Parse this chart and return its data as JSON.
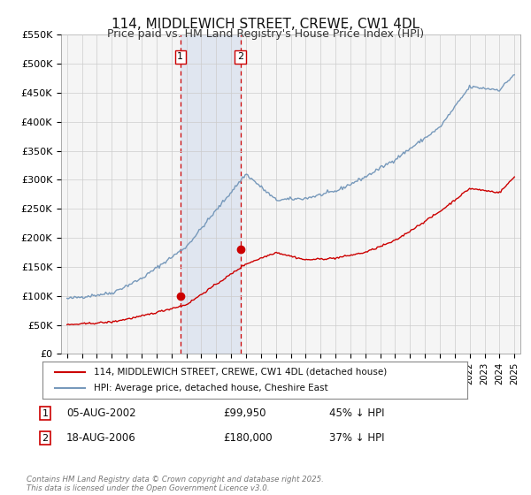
{
  "title": "114, MIDDLEWICH STREET, CREWE, CW1 4DL",
  "subtitle": "Price paid vs. HM Land Registry's House Price Index (HPI)",
  "ylim": [
    0,
    550000
  ],
  "yticks": [
    0,
    50000,
    100000,
    150000,
    200000,
    250000,
    300000,
    350000,
    400000,
    450000,
    500000,
    550000
  ],
  "ytick_labels": [
    "£0",
    "£50K",
    "£100K",
    "£150K",
    "£200K",
    "£250K",
    "£300K",
    "£350K",
    "£400K",
    "£450K",
    "£500K",
    "£550K"
  ],
  "xlim_start": 1994.6,
  "xlim_end": 2025.4,
  "sale1_x": 2002.6,
  "sale1_y": 99950,
  "sale1_label": "1",
  "sale1_date": "05-AUG-2002",
  "sale1_price": "£99,950",
  "sale1_hpi": "45% ↓ HPI",
  "sale2_x": 2006.63,
  "sale2_y": 180000,
  "sale2_label": "2",
  "sale2_date": "18-AUG-2006",
  "sale2_price": "£180,000",
  "sale2_hpi": "37% ↓ HPI",
  "red_line_color": "#cc0000",
  "blue_line_color": "#7799bb",
  "shade_color": "#dde4f0",
  "grid_color": "#cccccc",
  "legend_label_red": "114, MIDDLEWICH STREET, CREWE, CW1 4DL (detached house)",
  "legend_label_blue": "HPI: Average price, detached house, Cheshire East",
  "footer": "Contains HM Land Registry data © Crown copyright and database right 2025.\nThis data is licensed under the Open Government Licence v3.0.",
  "bg_color": "#ffffff",
  "plot_bg_color": "#f5f5f5",
  "hpi_key_t": [
    0.0,
    0.1,
    0.167,
    0.267,
    0.4,
    0.467,
    0.533,
    0.6,
    0.667,
    0.733,
    0.833,
    0.9,
    0.967,
    1.0
  ],
  "hpi_key_v": [
    95000,
    105000,
    130000,
    185000,
    310000,
    265000,
    268000,
    280000,
    305000,
    335000,
    390000,
    460000,
    455000,
    482000
  ],
  "red_key_t": [
    0.0,
    0.1,
    0.167,
    0.267,
    0.4,
    0.467,
    0.533,
    0.6,
    0.667,
    0.733,
    0.833,
    0.9,
    0.967,
    1.0
  ],
  "red_key_v": [
    50000,
    55000,
    65000,
    85000,
    155000,
    175000,
    162000,
    165000,
    175000,
    195000,
    245000,
    285000,
    278000,
    305000
  ]
}
